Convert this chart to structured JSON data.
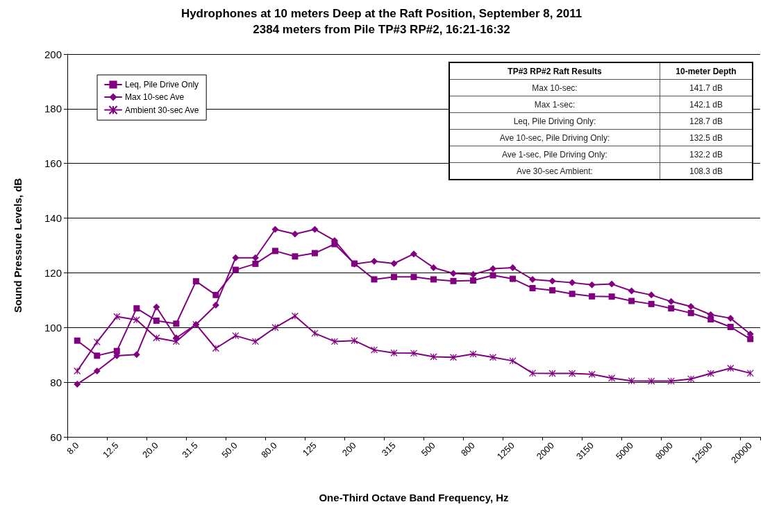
{
  "chart_data": {
    "type": "line",
    "title": "Hydrophones at 10 meters Deep at the Raft Position, September 8, 2011",
    "subtitle": "2384 meters from Pile TP#3 RP#2, 16:21-16:32",
    "xlabel": "One-Third Octave Band Frequency, Hz",
    "ylabel": "Sound Pressure Levels, dB",
    "categories": [
      "8.0",
      null,
      "12.5",
      null,
      "20.0",
      null,
      "31.5",
      null,
      "50.0",
      null,
      "80.0",
      null,
      "125",
      null,
      "200",
      null,
      "315",
      null,
      "500",
      null,
      "800",
      null,
      "1250",
      null,
      "2000",
      null,
      "3150",
      null,
      "5000",
      null,
      "8000",
      null,
      "12500",
      null,
      "20000"
    ],
    "series": [
      {
        "name": "Leq, Pile Drive Only",
        "color": "#800080",
        "marker": "square",
        "values": [
          95.2,
          89.7,
          91.4,
          107.0,
          102.5,
          101.4,
          116.9,
          111.9,
          121.1,
          123.3,
          128.0,
          126.0,
          127.2,
          130.5,
          123.4,
          117.6,
          118.5,
          118.5,
          117.6,
          117.0,
          117.2,
          119.1,
          117.8,
          114.4,
          113.6,
          112.3,
          111.4,
          111.3,
          109.7,
          108.6,
          107.0,
          105.3,
          103.0,
          100.2,
          95.8
        ]
      },
      {
        "name": "Max 10-sec Ave",
        "color": "#800080",
        "marker": "diamond",
        "values": [
          79.3,
          84.1,
          89.7,
          90.1,
          107.5,
          96.2,
          101.1,
          108.2,
          125.5,
          125.5,
          135.9,
          134.2,
          135.9,
          131.8,
          123.2,
          124.2,
          123.4,
          126.9,
          121.9,
          119.8,
          119.4,
          121.5,
          121.9,
          117.6,
          117.0,
          116.4,
          115.6,
          115.9,
          113.4,
          111.9,
          109.5,
          107.7,
          104.7,
          103.4,
          97.6
        ]
      },
      {
        "name": "Ambient 30-sec Ave",
        "color": "#800080",
        "marker": "cross",
        "values": [
          84.1,
          94.7,
          104.0,
          102.8,
          96.2,
          94.9,
          101.1,
          92.4,
          97.0,
          94.9,
          100.0,
          104.2,
          97.9,
          94.9,
          95.2,
          91.8,
          90.7,
          90.6,
          89.3,
          89.1,
          90.3,
          89.1,
          87.8,
          83.3,
          83.2,
          83.2,
          82.9,
          81.5,
          80.5,
          80.4,
          80.4,
          81.2,
          83.2,
          85.1,
          83.3
        ]
      }
    ],
    "ylim": [
      60,
      200
    ],
    "yticks": [
      60,
      80,
      100,
      120,
      140,
      160,
      180,
      200
    ],
    "grid": "y",
    "legend": "top left",
    "line_style": "solid",
    "annotations": [
      "TP#3 RP#2 Raft Results",
      "10-meter Depth",
      "Max 10-sec:",
      "141.7 dB",
      "Max 1-sec:",
      "142.1 dB",
      "Leq, Pile Driving Only:",
      "128.7 dB",
      "Ave 10-sec, Pile Driving Only:",
      "132.5 dB",
      "Ave 1-sec, Pile Driving Only:",
      "132.2 dB",
      "Ave 30-sec Ambient:",
      "108.3 dB"
    ]
  }
}
